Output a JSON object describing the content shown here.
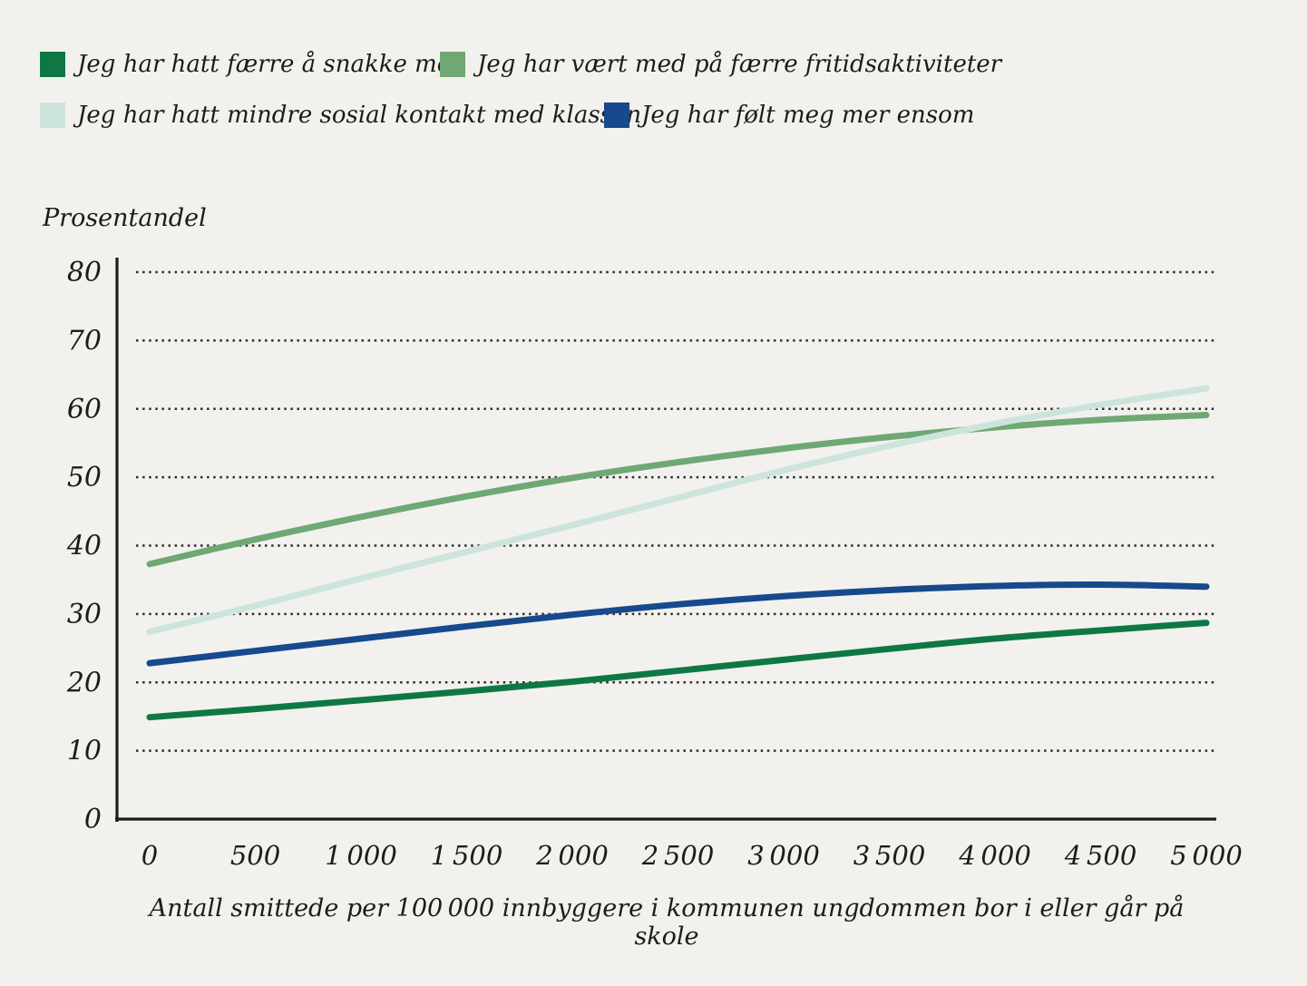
{
  "page": {
    "background_color": "#f2f1ee",
    "text_color": "#1d1c1a"
  },
  "chart_data": {
    "type": "line",
    "title": "",
    "ylabel": "Prosentandel",
    "xlabel": "Antall smittede per 100 000 innbyggere i kommunen ungdommen bor i eller går på skole",
    "xlim": [
      0,
      5000
    ],
    "ylim": [
      0,
      80
    ],
    "grid": "horizontal-dotted",
    "legend_position": "top-left",
    "x": [
      0,
      500,
      1000,
      1500,
      2000,
      2500,
      3000,
      3500,
      4000,
      4500,
      5000
    ],
    "x_tick_labels": [
      "0",
      "500",
      "1 000",
      "1 500",
      "2 000",
      "2 500",
      "3 000",
      "3 500",
      "4 000",
      "4 500",
      "5 000"
    ],
    "y_ticks": [
      0,
      10,
      20,
      30,
      40,
      50,
      60,
      70,
      80
    ],
    "series": [
      {
        "name": "Jeg har hatt færre å snakke med",
        "color": "#0E7844",
        "values": [
          14.9,
          16.1,
          17.4,
          18.7,
          20.1,
          21.7,
          23.3,
          24.9,
          26.4,
          27.6,
          28.7
        ]
      },
      {
        "name": "Jeg har vært med på færre fritidsaktiviteter",
        "color": "#6FA873",
        "values": [
          37.3,
          40.9,
          44.2,
          47.2,
          49.9,
          52.2,
          54.2,
          55.9,
          57.3,
          58.4,
          59.1
        ]
      },
      {
        "name": "Jeg har hatt mindre sosial kontakt med klassen",
        "color": "#CDE4DD",
        "values": [
          27.4,
          31.2,
          35.2,
          39.1,
          43.0,
          47.0,
          51.0,
          54.6,
          57.8,
          60.6,
          63.0
        ]
      },
      {
        "name": "Jeg har følt meg mer ensom",
        "color": "#17498C",
        "values": [
          22.8,
          24.6,
          26.4,
          28.2,
          29.9,
          31.4,
          32.6,
          33.5,
          34.1,
          34.3,
          34.0
        ]
      }
    ]
  }
}
